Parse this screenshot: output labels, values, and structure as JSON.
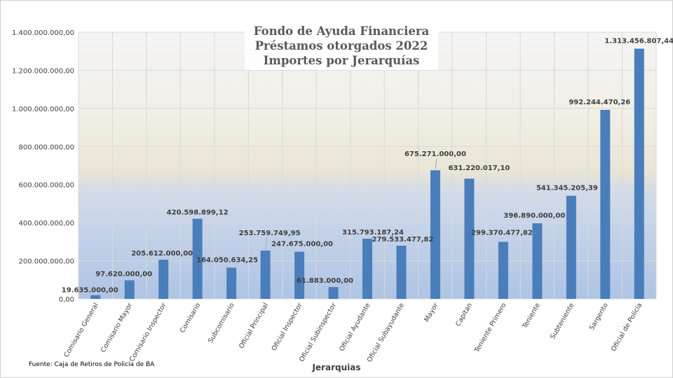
{
  "chart_data": {
    "type": "bar",
    "title": [
      "Fondo de Ayuda Financiera",
      "Préstamos otorgados 2022",
      "Importes por Jerarquías"
    ],
    "xlabel": "Jerarquias",
    "ylabel": "",
    "ylim": [
      0,
      1400000000
    ],
    "yticks": [
      0,
      200000000,
      400000000,
      600000000,
      800000000,
      1000000000,
      1200000000,
      1400000000
    ],
    "ytick_labels": [
      "0,00",
      "200.000.000,00",
      "400.000.000,00",
      "600.000.000,00",
      "800.000.000,00",
      "1.000.000.000,00",
      "1.200.000.000,00",
      "1.400.000.000,00"
    ],
    "grid": true,
    "bar_color": "#4A7EBB",
    "categories": [
      "Comisario General",
      "Comisario Mayor",
      "Comisario Inspector",
      "Comisario",
      "Subcomisario",
      "Oficial Principal",
      "Oficial Inspector",
      "Oficial Subinspector",
      "Oficial Ayudante",
      "Oficial Subayudante",
      "Mayor",
      "Capitan",
      "Teniente Primero",
      "Teniente",
      "Subteniente",
      "Sargento",
      "Oficial de Policía"
    ],
    "values": [
      19635000.0,
      97620000.0,
      205612000.0,
      420598899.12,
      164050634.25,
      253759749.95,
      247675000.0,
      61883000.0,
      315793187.24,
      279533477.82,
      675271000.0,
      631220017.1,
      299370477.82,
      396890000.0,
      541345205.39,
      992244470.26,
      1313456807.44
    ],
    "data_labels": [
      "19.635.000,00",
      "97.620.000,00",
      "205.612.000,00",
      "420.598.899,12",
      "164.050.634,25",
      "253.759.749,95",
      "247.675.000,00",
      "61.883.000,00",
      "315.793.187,24",
      "279.533.477,82",
      "675.271.000,00",
      "631.220.017,10",
      "299.370.477,82",
      "396.890.000,00",
      "541.345.205,39",
      "992.244.470,26",
      "1.313.456.807,44"
    ]
  },
  "footer": {
    "source": "Fuente: Caja de Retiros de Policía de BA"
  }
}
